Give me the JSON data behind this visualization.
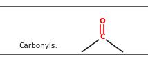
{
  "label_carbonyls": "Carbonyls:",
  "label_C": "C",
  "label_O": "O",
  "color_CO": "#ff0000",
  "color_lines": "#1a1a1a",
  "color_text": "#1a1a1a",
  "bg_color": "#ffffff",
  "border_color": "#555555",
  "carbonyls_fontsize": 7.5,
  "C_fontsize": 7.5,
  "O_fontsize": 7.5,
  "line_width": 1.2,
  "border_linewidth": 0.7
}
